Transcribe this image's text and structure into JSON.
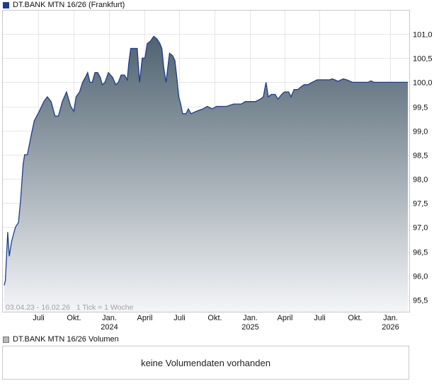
{
  "price_legend": "DT.BANK MTN 16/26 (Frankfurt)",
  "volume_legend": "DT.BANK MTN 16/26 Volumen",
  "volume_message": "keine Volumendaten vorhanden",
  "info_text": "03.04.23 - 16.02.26   1 Tick = 1 Woche",
  "colors": {
    "line": "#1c3d8c",
    "fill_top": "#4f6270",
    "fill_bottom": "#f4f5f7",
    "grid": "#e6e6e6",
    "frame": "#c8c8c8"
  },
  "chart_data": {
    "type": "area",
    "title": "DT.BANK MTN 16/26 (Frankfurt)",
    "xlabel": "",
    "ylabel": "",
    "ylim": [
      95.2,
      101.3
    ],
    "y_ticks": [
      "95,5",
      "96,0",
      "96,5",
      "97,0",
      "97,5",
      "98,0",
      "98,5",
      "99,0",
      "99,5",
      "100,0",
      "100,5",
      "101,0"
    ],
    "x_ticks": [
      {
        "label": "Juli",
        "year": "",
        "date": "2023-07-01"
      },
      {
        "label": "Okt.",
        "year": "",
        "date": "2023-10-01"
      },
      {
        "label": "Jan.",
        "year": "2024",
        "date": "2024-01-01"
      },
      {
        "label": "April",
        "year": "",
        "date": "2024-04-01"
      },
      {
        "label": "Juli",
        "year": "",
        "date": "2024-07-01"
      },
      {
        "label": "Okt.",
        "year": "",
        "date": "2024-10-01"
      },
      {
        "label": "Jan.",
        "year": "2025",
        "date": "2025-01-01"
      },
      {
        "label": "April",
        "year": "",
        "date": "2025-04-01"
      },
      {
        "label": "Juli",
        "year": "",
        "date": "2025-07-01"
      },
      {
        "label": "Okt.",
        "year": "",
        "date": "2025-10-01"
      },
      {
        "label": "Jan.",
        "year": "2026",
        "date": "2026-01-01"
      }
    ],
    "x_range": [
      "2023-04-03",
      "2026-02-16"
    ],
    "series": [
      {
        "points": [
          [
            "2023-04-03",
            95.8
          ],
          [
            "2023-04-06",
            95.9
          ],
          [
            "2023-04-12",
            96.9
          ],
          [
            "2023-04-16",
            96.4
          ],
          [
            "2023-04-22",
            96.7
          ],
          [
            "2023-05-02",
            97.0
          ],
          [
            "2023-05-10",
            97.1
          ],
          [
            "2023-05-16",
            97.6
          ],
          [
            "2023-05-22",
            98.3
          ],
          [
            "2023-05-26",
            98.5
          ],
          [
            "2023-06-02",
            98.5
          ],
          [
            "2023-06-12",
            98.9
          ],
          [
            "2023-06-20",
            99.2
          ],
          [
            "2023-07-03",
            99.4
          ],
          [
            "2023-07-15",
            99.6
          ],
          [
            "2023-07-24",
            99.7
          ],
          [
            "2023-08-03",
            99.6
          ],
          [
            "2023-08-13",
            99.3
          ],
          [
            "2023-08-22",
            99.3
          ],
          [
            "2023-09-01",
            99.6
          ],
          [
            "2023-09-12",
            99.8
          ],
          [
            "2023-09-23",
            99.5
          ],
          [
            "2023-10-01",
            99.4
          ],
          [
            "2023-10-07",
            99.7
          ],
          [
            "2023-10-16",
            99.8
          ],
          [
            "2023-10-24",
            100.0
          ],
          [
            "2023-10-31",
            100.1
          ],
          [
            "2023-11-06",
            100.2
          ],
          [
            "2023-11-12",
            100.0
          ],
          [
            "2023-11-18",
            100.0
          ],
          [
            "2023-11-25",
            100.2
          ],
          [
            "2023-12-02",
            100.2
          ],
          [
            "2023-12-09",
            100.1
          ],
          [
            "2023-12-14",
            99.95
          ],
          [
            "2023-12-21",
            100.0
          ],
          [
            "2023-12-30",
            100.2
          ],
          [
            "2024-01-10",
            100.1
          ],
          [
            "2024-01-18",
            99.95
          ],
          [
            "2024-01-25",
            100.0
          ],
          [
            "2024-02-01",
            100.15
          ],
          [
            "2024-02-10",
            100.15
          ],
          [
            "2024-02-17",
            100.05
          ],
          [
            "2024-02-21",
            100.4
          ],
          [
            "2024-02-26",
            100.7
          ],
          [
            "2024-03-08",
            100.7
          ],
          [
            "2024-03-14",
            100.7
          ],
          [
            "2024-03-20",
            100.0
          ],
          [
            "2024-03-27",
            100.5
          ],
          [
            "2024-04-03",
            100.5
          ],
          [
            "2024-04-09",
            100.8
          ],
          [
            "2024-04-17",
            100.85
          ],
          [
            "2024-04-26",
            100.95
          ],
          [
            "2024-05-04",
            100.9
          ],
          [
            "2024-05-12",
            100.8
          ],
          [
            "2024-05-17",
            100.7
          ],
          [
            "2024-05-22",
            100.3
          ],
          [
            "2024-05-28",
            100.0
          ],
          [
            "2024-06-06",
            100.6
          ],
          [
            "2024-06-14",
            100.55
          ],
          [
            "2024-06-20",
            100.45
          ],
          [
            "2024-06-25",
            100.1
          ],
          [
            "2024-06-30",
            99.7
          ],
          [
            "2024-07-05",
            99.55
          ],
          [
            "2024-07-10",
            99.35
          ],
          [
            "2024-07-19",
            99.35
          ],
          [
            "2024-07-25",
            99.45
          ],
          [
            "2024-08-01",
            99.35
          ],
          [
            "2024-08-15",
            99.4
          ],
          [
            "2024-09-01",
            99.45
          ],
          [
            "2024-09-12",
            99.5
          ],
          [
            "2024-09-25",
            99.45
          ],
          [
            "2024-10-06",
            99.5
          ],
          [
            "2024-10-20",
            99.5
          ],
          [
            "2024-11-01",
            99.5
          ],
          [
            "2024-11-20",
            99.55
          ],
          [
            "2024-12-10",
            99.55
          ],
          [
            "2024-12-20",
            99.6
          ],
          [
            "2025-01-05",
            99.6
          ],
          [
            "2025-01-15",
            99.6
          ],
          [
            "2025-01-28",
            99.65
          ],
          [
            "2025-02-05",
            99.7
          ],
          [
            "2025-02-12",
            100.0
          ],
          [
            "2025-02-18",
            99.7
          ],
          [
            "2025-02-26",
            99.75
          ],
          [
            "2025-03-08",
            99.75
          ],
          [
            "2025-03-15",
            99.65
          ],
          [
            "2025-03-25",
            99.75
          ],
          [
            "2025-04-01",
            99.8
          ],
          [
            "2025-04-12",
            99.8
          ],
          [
            "2025-04-18",
            99.7
          ],
          [
            "2025-04-26",
            99.85
          ],
          [
            "2025-05-06",
            99.85
          ],
          [
            "2025-05-13",
            99.9
          ],
          [
            "2025-05-22",
            99.95
          ],
          [
            "2025-06-01",
            99.95
          ],
          [
            "2025-06-12",
            100.0
          ],
          [
            "2025-06-25",
            100.05
          ],
          [
            "2025-07-02",
            100.05
          ],
          [
            "2025-07-15",
            100.05
          ],
          [
            "2025-07-28",
            100.05
          ],
          [
            "2025-08-03",
            100.07
          ],
          [
            "2025-08-10",
            100.05
          ],
          [
            "2025-08-18",
            100.02
          ],
          [
            "2025-09-01",
            100.07
          ],
          [
            "2025-09-10",
            100.05
          ],
          [
            "2025-09-25",
            100.0
          ],
          [
            "2025-10-10",
            100.0
          ],
          [
            "2025-10-25",
            100.0
          ],
          [
            "2025-11-05",
            100.0
          ],
          [
            "2025-11-12",
            100.03
          ],
          [
            "2025-11-20",
            100.0
          ],
          [
            "2025-12-05",
            100.0
          ],
          [
            "2025-12-20",
            100.0
          ],
          [
            "2026-01-05",
            100.0
          ],
          [
            "2026-01-20",
            100.0
          ],
          [
            "2026-02-16",
            100.0
          ]
        ]
      }
    ]
  }
}
